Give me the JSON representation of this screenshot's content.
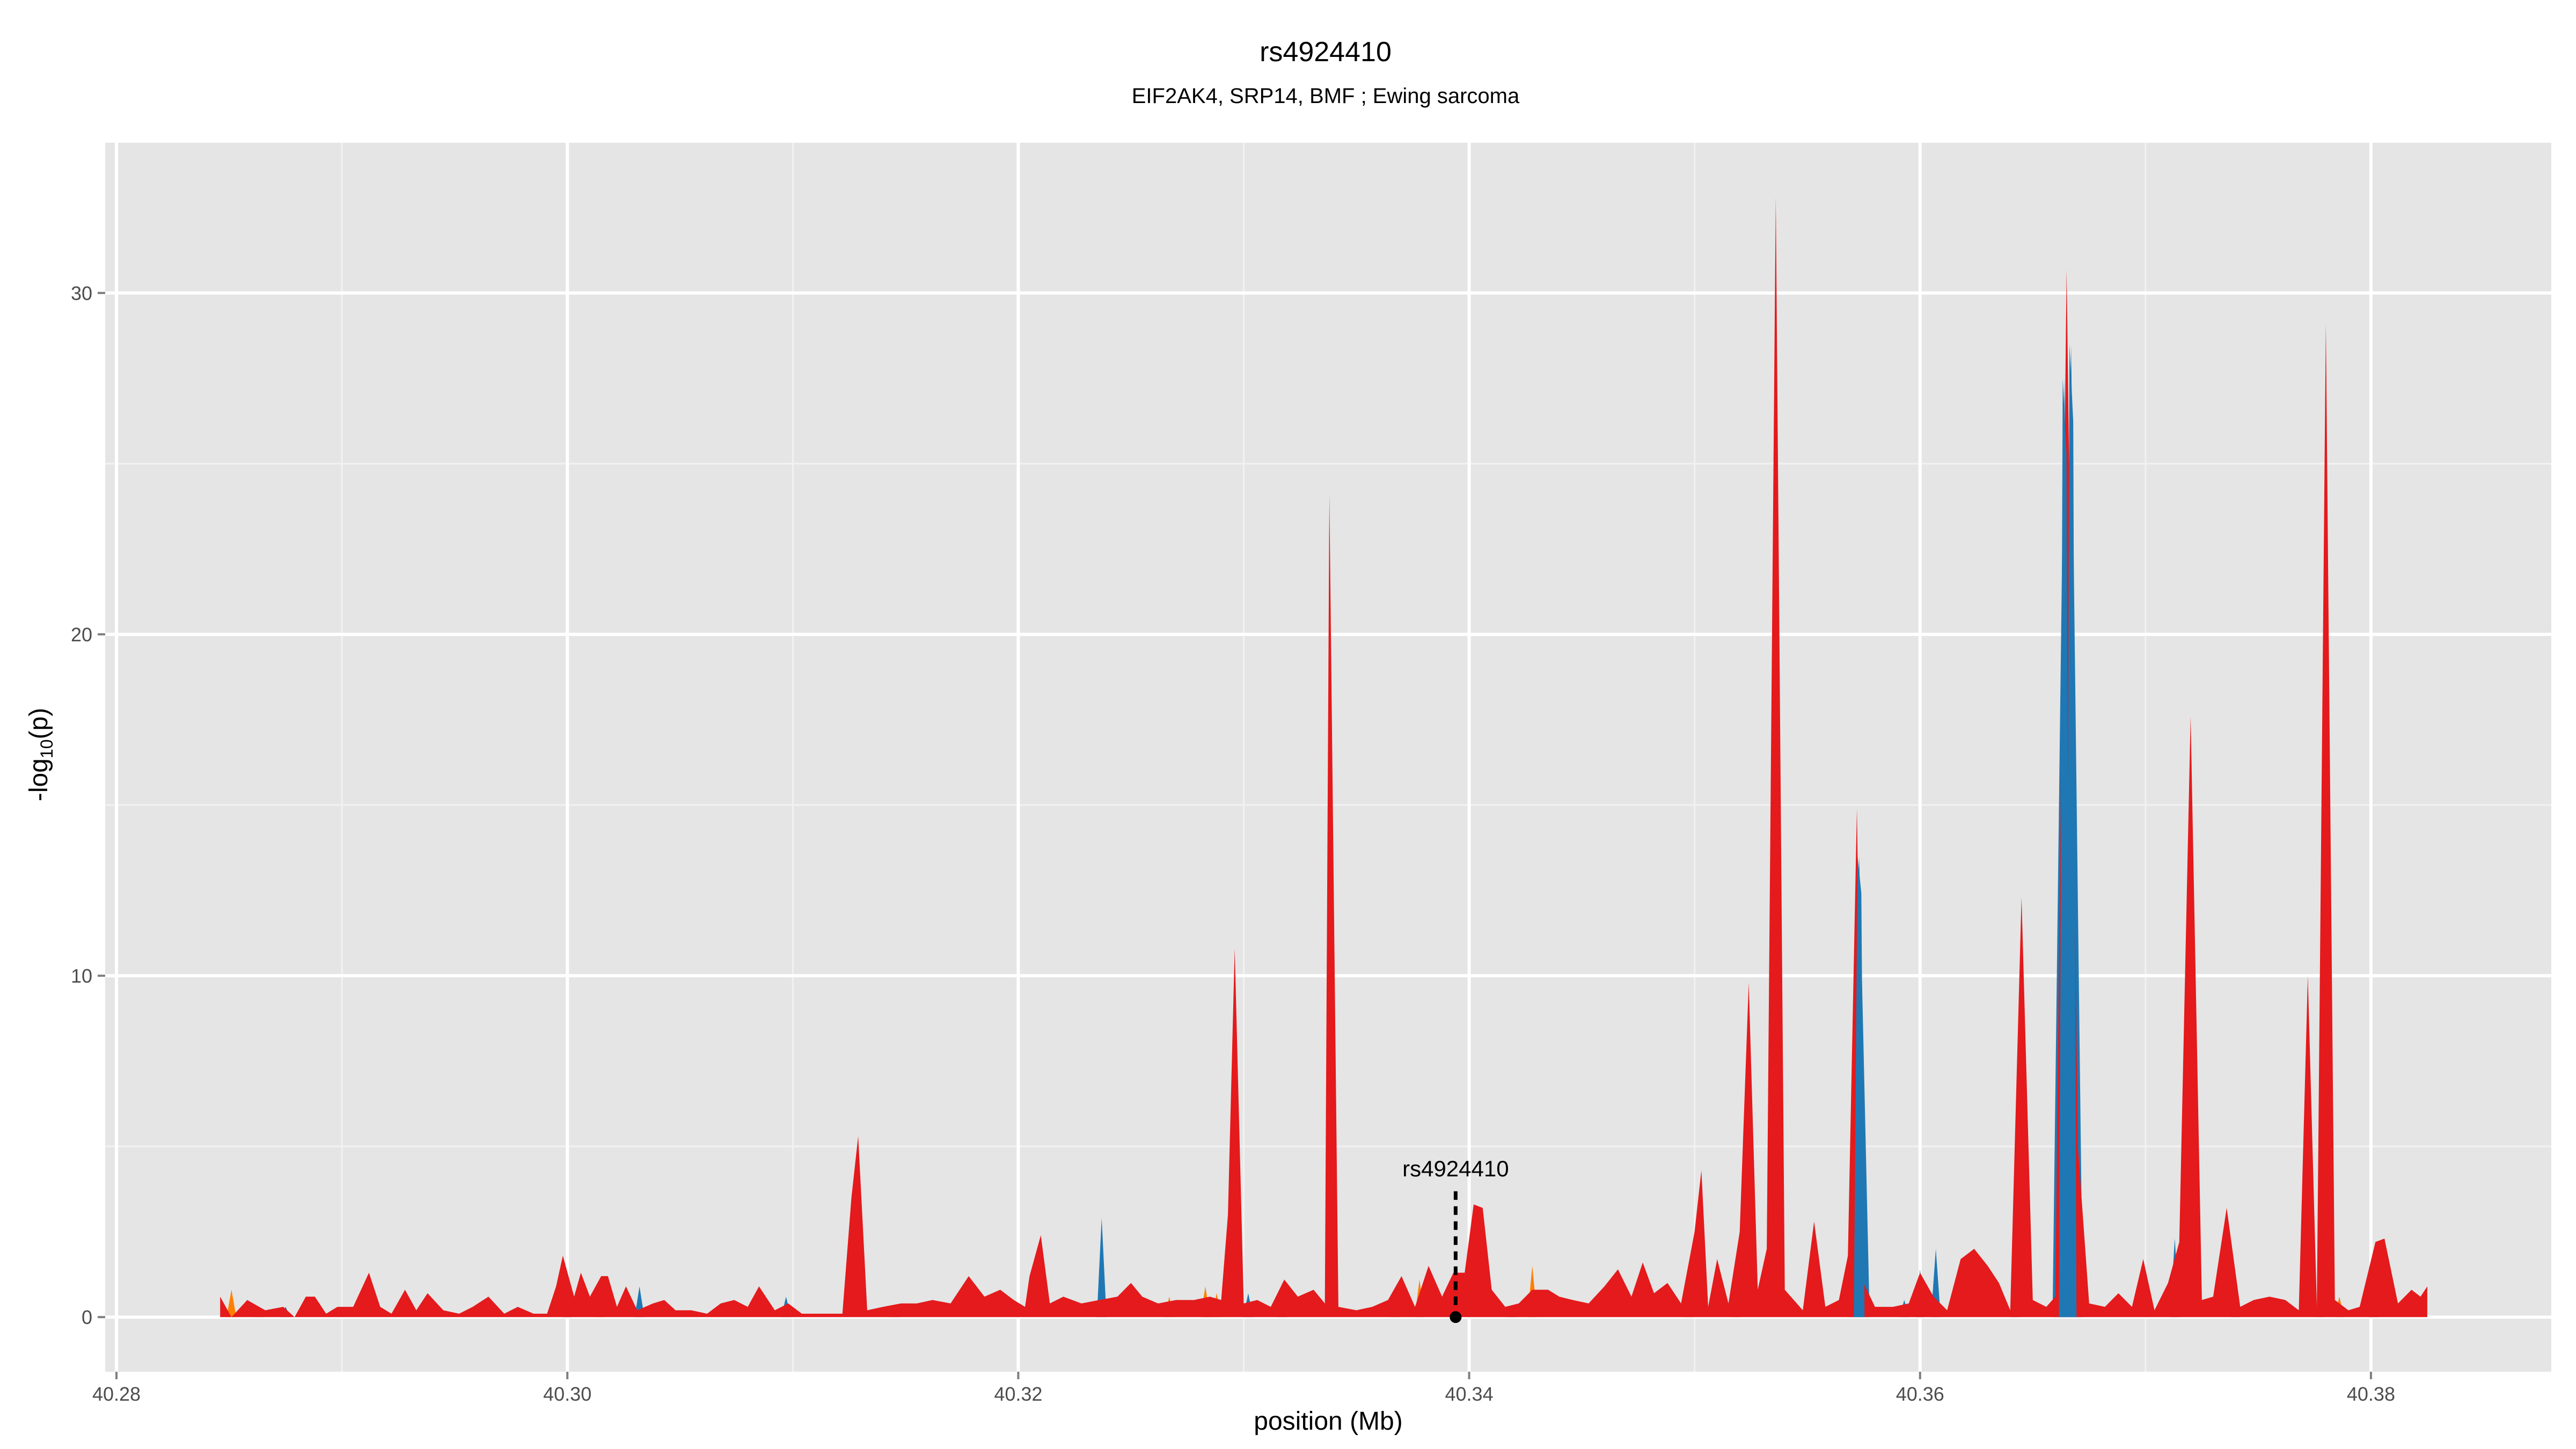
{
  "chart_data": {
    "type": "area",
    "title": "rs4924410",
    "subtitle": "EIF2AK4, SRP14, BMF ; Ewing sarcoma",
    "xlabel": "position (Mb)",
    "ylabel_main": "-log",
    "ylabel_sub": "10",
    "ylabel_tail": "(p)",
    "xlim": [
      40.2795,
      40.388
    ],
    "ylim": [
      -1.6,
      34.4
    ],
    "x_ticks": [
      40.28,
      40.3,
      40.32,
      40.34,
      40.36,
      40.38
    ],
    "x_tick_labels": [
      "40.28",
      "40.30",
      "40.32",
      "40.34",
      "40.36",
      "40.38"
    ],
    "y_ticks": [
      0,
      10,
      20,
      30
    ],
    "y_tick_labels": [
      "0",
      "10",
      "20",
      "30"
    ],
    "grid": true,
    "panel_background": "#e5e5e5",
    "series": [
      {
        "color": "#e41a1c",
        "points": [
          [
            40.2846,
            0.6
          ],
          [
            40.2851,
            0.0
          ],
          [
            40.2858,
            0.5
          ],
          [
            40.2866,
            0.2
          ],
          [
            40.2874,
            0.3
          ],
          [
            40.2879,
            0.0
          ],
          [
            40.2884,
            0.6
          ],
          [
            40.2888,
            0.6
          ],
          [
            40.2893,
            0.1
          ],
          [
            40.2898,
            0.3
          ],
          [
            40.2905,
            0.3
          ],
          [
            40.2912,
            1.3
          ],
          [
            40.2917,
            0.3
          ],
          [
            40.2922,
            0.1
          ],
          [
            40.2928,
            0.8
          ],
          [
            40.2933,
            0.2
          ],
          [
            40.2938,
            0.7
          ],
          [
            40.2945,
            0.2
          ],
          [
            40.2952,
            0.1
          ],
          [
            40.2958,
            0.3
          ],
          [
            40.2965,
            0.6
          ],
          [
            40.2972,
            0.1
          ],
          [
            40.2978,
            0.3
          ],
          [
            40.2985,
            0.1
          ],
          [
            40.2991,
            0.1
          ],
          [
            40.2995,
            0.9
          ],
          [
            40.2998,
            1.8
          ],
          [
            40.3003,
            0.6
          ],
          [
            40.3006,
            1.3
          ],
          [
            40.301,
            0.6
          ],
          [
            40.3015,
            1.2
          ],
          [
            40.3018,
            1.2
          ],
          [
            40.3022,
            0.3
          ],
          [
            40.3026,
            0.9
          ],
          [
            40.3031,
            0.2
          ],
          [
            40.3038,
            0.4
          ],
          [
            40.3043,
            0.5
          ],
          [
            40.3048,
            0.2
          ],
          [
            40.3055,
            0.2
          ],
          [
            40.3062,
            0.1
          ],
          [
            40.3068,
            0.4
          ],
          [
            40.3074,
            0.5
          ],
          [
            40.308,
            0.3
          ],
          [
            40.3085,
            0.9
          ],
          [
            40.3092,
            0.2
          ],
          [
            40.3098,
            0.4
          ],
          [
            40.3104,
            0.1
          ],
          [
            40.311,
            0.1
          ],
          [
            40.3116,
            0.1
          ],
          [
            40.3122,
            0.1
          ],
          [
            40.3126,
            3.5
          ],
          [
            40.3129,
            5.3
          ],
          [
            40.3133,
            0.2
          ],
          [
            40.314,
            0.3
          ],
          [
            40.3148,
            0.4
          ],
          [
            40.3155,
            0.4
          ],
          [
            40.3162,
            0.5
          ],
          [
            40.317,
            0.4
          ],
          [
            40.3178,
            1.2
          ],
          [
            40.3185,
            0.6
          ],
          [
            40.3192,
            0.8
          ],
          [
            40.3198,
            0.5
          ],
          [
            40.3203,
            0.3
          ],
          [
            40.3205,
            1.2
          ],
          [
            40.321,
            2.4
          ],
          [
            40.3214,
            0.4
          ],
          [
            40.322,
            0.6
          ],
          [
            40.3228,
            0.4
          ],
          [
            40.3236,
            0.5
          ],
          [
            40.3244,
            0.6
          ],
          [
            40.325,
            1.0
          ],
          [
            40.3255,
            0.6
          ],
          [
            40.3262,
            0.4
          ],
          [
            40.327,
            0.5
          ],
          [
            40.3278,
            0.5
          ],
          [
            40.3285,
            0.6
          ],
          [
            40.329,
            0.5
          ],
          [
            40.3293,
            3.0
          ],
          [
            40.3296,
            10.8
          ],
          [
            40.33,
            0.4
          ],
          [
            40.3306,
            0.5
          ],
          [
            40.3312,
            0.3
          ],
          [
            40.3318,
            1.1
          ],
          [
            40.3324,
            0.6
          ],
          [
            40.3331,
            0.8
          ],
          [
            40.3336,
            0.4
          ],
          [
            40.3338,
            24.1
          ],
          [
            40.3342,
            0.3
          ],
          [
            40.335,
            0.2
          ],
          [
            40.3357,
            0.3
          ],
          [
            40.3364,
            0.5
          ],
          [
            40.337,
            1.2
          ],
          [
            40.3376,
            0.3
          ],
          [
            40.3382,
            1.5
          ],
          [
            40.3388,
            0.6
          ],
          [
            40.3393,
            1.3
          ],
          [
            40.3398,
            1.3
          ],
          [
            40.3402,
            3.3
          ],
          [
            40.3406,
            3.2
          ],
          [
            40.341,
            0.8
          ],
          [
            40.3416,
            0.3
          ],
          [
            40.3422,
            0.4
          ],
          [
            40.3428,
            0.8
          ],
          [
            40.3435,
            0.8
          ],
          [
            40.344,
            0.6
          ],
          [
            40.3446,
            0.5
          ],
          [
            40.3453,
            0.4
          ],
          [
            40.346,
            0.9
          ],
          [
            40.3466,
            1.4
          ],
          [
            40.3472,
            0.6
          ],
          [
            40.3477,
            1.6
          ],
          [
            40.3482,
            0.7
          ],
          [
            40.3488,
            1.0
          ],
          [
            40.3494,
            0.4
          ],
          [
            40.35,
            2.5
          ],
          [
            40.3503,
            4.3
          ],
          [
            40.3506,
            0.3
          ],
          [
            40.351,
            1.7
          ],
          [
            40.3515,
            0.4
          ],
          [
            40.352,
            2.5
          ],
          [
            40.3524,
            9.8
          ],
          [
            40.3528,
            0.8
          ],
          [
            40.3532,
            2.0
          ],
          [
            40.3536,
            32.8
          ],
          [
            40.354,
            0.8
          ],
          [
            40.3548,
            0.2
          ],
          [
            40.3553,
            2.8
          ],
          [
            40.3558,
            0.3
          ],
          [
            40.3564,
            0.5
          ],
          [
            40.3568,
            1.8
          ],
          [
            40.3572,
            14.9
          ],
          [
            40.3575,
            1.0
          ],
          [
            40.358,
            0.3
          ],
          [
            40.3588,
            0.3
          ],
          [
            40.3595,
            0.4
          ],
          [
            40.36,
            1.3
          ],
          [
            40.3606,
            0.6
          ],
          [
            40.3612,
            0.2
          ],
          [
            40.3618,
            1.7
          ],
          [
            40.3624,
            2.0
          ],
          [
            40.363,
            1.5
          ],
          [
            40.3635,
            1.0
          ],
          [
            40.364,
            0.2
          ],
          [
            40.3645,
            12.3
          ],
          [
            40.365,
            0.5
          ],
          [
            40.3656,
            0.3
          ],
          [
            40.366,
            0.6
          ],
          [
            40.3665,
            30.7
          ],
          [
            40.367,
            5.0
          ],
          [
            40.3675,
            0.4
          ],
          [
            40.3682,
            0.3
          ],
          [
            40.3688,
            0.7
          ],
          [
            40.3694,
            0.3
          ],
          [
            40.3699,
            1.7
          ],
          [
            40.3704,
            0.2
          ],
          [
            40.371,
            1.0
          ],
          [
            40.3715,
            2.2
          ],
          [
            40.372,
            17.6
          ],
          [
            40.3725,
            0.5
          ],
          [
            40.373,
            0.6
          ],
          [
            40.3736,
            3.2
          ],
          [
            40.3742,
            0.3
          ],
          [
            40.3748,
            0.5
          ],
          [
            40.3755,
            0.6
          ],
          [
            40.3762,
            0.5
          ],
          [
            40.3768,
            0.2
          ],
          [
            40.3772,
            10.0
          ],
          [
            40.3776,
            0.3
          ],
          [
            40.378,
            29.1
          ],
          [
            40.3784,
            0.5
          ],
          [
            40.379,
            0.2
          ],
          [
            40.3795,
            0.3
          ],
          [
            40.3802,
            2.2
          ],
          [
            40.3806,
            2.3
          ],
          [
            40.3812,
            0.4
          ],
          [
            40.3818,
            0.8
          ],
          [
            40.3822,
            0.6
          ],
          [
            40.3825,
            0.9
          ]
        ]
      },
      {
        "color": "#1f78b4",
        "points": [
          [
            40.2875,
            0.3
          ],
          [
            40.3,
            0.8
          ],
          [
            40.3032,
            0.9
          ],
          [
            40.3097,
            0.6
          ],
          [
            40.3237,
            2.9
          ],
          [
            40.3284,
            0.5
          ],
          [
            40.3302,
            0.7
          ],
          [
            40.3317,
            1.0
          ],
          [
            40.3419,
            0.3
          ],
          [
            40.3573,
            13.5
          ],
          [
            40.3593,
            0.5
          ],
          [
            40.36,
            1.4
          ],
          [
            40.3607,
            2.0
          ],
          [
            40.3642,
            1.0
          ],
          [
            40.3664,
            27.5
          ],
          [
            40.3667,
            28.5
          ],
          [
            40.3713,
            2.3
          ],
          [
            40.374,
            0.9
          ],
          [
            40.3801,
            1.5
          ]
        ]
      },
      {
        "color": "#ff7f00",
        "points": [
          [
            40.2851,
            0.8
          ],
          [
            40.2863,
            0.3
          ],
          [
            40.3014,
            0.7
          ],
          [
            40.3145,
            0.3
          ],
          [
            40.3267,
            0.6
          ],
          [
            40.3283,
            0.9
          ],
          [
            40.3288,
            0.7
          ],
          [
            40.3367,
            0.3
          ],
          [
            40.3378,
            1.1
          ],
          [
            40.3428,
            1.5
          ],
          [
            40.3497,
            0.8
          ],
          [
            40.3518,
            0.6
          ],
          [
            40.3777,
            0.5
          ],
          [
            40.3786,
            0.6
          ]
        ]
      }
    ],
    "annotation": {
      "label": "rs4924410",
      "x": 40.3394,
      "y": 0.0,
      "label_y": 4.0
    }
  }
}
